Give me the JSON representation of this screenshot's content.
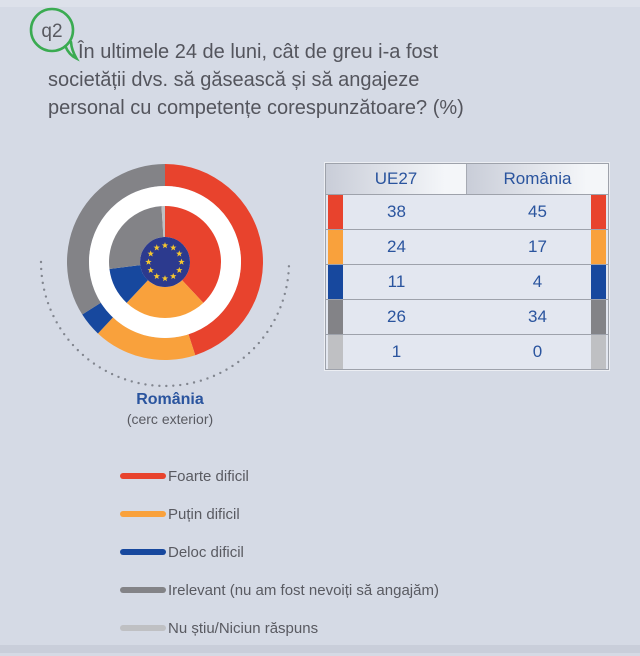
{
  "page": {
    "background": "#d5dae5"
  },
  "question": {
    "id": "q2",
    "bubble_color": "#3aab51",
    "text": "În ultimele 24 de luni, cât de greu i-a fost societății dvs. să găsească și să angajeze personal cu competențe corespunzătoare? (%)",
    "text_lines": [
      "În ultimele 24 de luni, cât de greu i-a fost",
      "societății dvs. să găsească și să angajeze",
      "personal cu competențe corespunzătoare? (%)"
    ]
  },
  "chart_data": {
    "type": "pie",
    "variant": "double-ring-donut",
    "title": "",
    "categories": [
      "Foarte dificil",
      "Puțin dificil",
      "Deloc dificil",
      "Irelevant (nu am fost nevoiți să angajăm)",
      "Nu știu/Niciun răspuns"
    ],
    "colors": [
      "#e8432d",
      "#f9a13c",
      "#17489e",
      "#838387",
      "#bfc0c3"
    ],
    "series": [
      {
        "name": "UE27",
        "ring": "inner",
        "values": [
          38,
          24,
          11,
          26,
          1
        ]
      },
      {
        "name": "România",
        "ring": "outer",
        "values": [
          45,
          17,
          4,
          34,
          0
        ]
      }
    ],
    "units": "%",
    "center_icon": "eu-flag",
    "eu_flag": {
      "blue": "#2c3a8e",
      "star_yellow": "#f6c72e"
    },
    "dotted_arc_color": "#82868f",
    "legend_position": "bottom-left",
    "caption": {
      "title": "România",
      "subtitle": "(cerc exterior)"
    }
  },
  "table": {
    "headers": [
      "UE27",
      "România"
    ]
  }
}
